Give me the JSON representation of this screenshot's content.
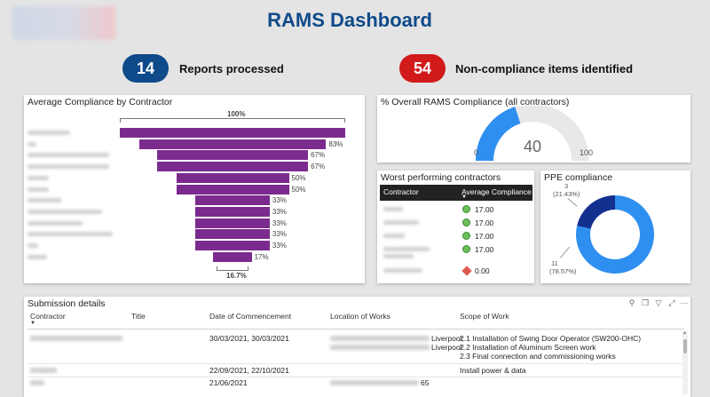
{
  "page": {
    "title": "RAMS Dashboard"
  },
  "kpis": {
    "reports": {
      "value": "14",
      "label": "Reports processed",
      "color": "#0f4a8a"
    },
    "noncompliance": {
      "value": "54",
      "label": "Non-compliance items identified",
      "color": "#d11b1b"
    }
  },
  "funnel": {
    "title": "Average Compliance by Contractor",
    "top_label": "100%",
    "bottom_label": "16.7%",
    "bar_color": "#7b2b8e"
  },
  "gauge": {
    "title": "% Overall RAMS Compliance (all contractors)",
    "value_text": "40",
    "min_label": "0",
    "max_label": "100"
  },
  "worst": {
    "title": "Worst performing contractors",
    "col_contractor": "Contractor",
    "col_avg": "Average Compliance",
    "values": [
      "17.00",
      "17.00",
      "17.00",
      "17.00",
      "0.00"
    ]
  },
  "ppe": {
    "title": "PPE compliance",
    "label_a_count": "3",
    "label_a_pct": "(21.43%)",
    "label_b_count": "11",
    "label_b_pct": "(78.57%)",
    "color_a": "#14308f",
    "color_b": "#2f8ff0"
  },
  "submission": {
    "title": "Submission details",
    "headers": {
      "contractor": "Contractor",
      "title": "Title",
      "date": "Date of Commencement",
      "location": "Location of Works",
      "scope": "Scope of Work"
    },
    "rows": [
      {
        "date": "30/03/2021, 30/03/2021",
        "loc_suffix": "Liverpool,",
        "loc_suffix2": "Liverpool",
        "scope": [
          "2.1 Installation of Swing Door Operator (SW200-OHC)",
          "2.2 Installation of Aluminum Screen work",
          "2.3 Final connection and commissioning works"
        ]
      },
      {
        "date": "22/09/2021, 22/10/2021",
        "scope": [
          "Install power & data"
        ]
      },
      {
        "date": "21/06/2021",
        "loc_suffix": "65"
      }
    ]
  },
  "chart_data": [
    {
      "type": "bar",
      "title": "Average Compliance by Contractor",
      "orientation": "horizontal-funnel",
      "categories": [
        "",
        "",
        "",
        "",
        "",
        "",
        "",
        "",
        "",
        "",
        "",
        ""
      ],
      "values": [
        100,
        83,
        67,
        67,
        50,
        50,
        33,
        33,
        33,
        33,
        33,
        17
      ],
      "data_labels": [
        "",
        "83%",
        "67%",
        "67%",
        "50%",
        "50%",
        "33%",
        "33%",
        "33%",
        "33%",
        "33%",
        "17%"
      ]
    },
    {
      "type": "pie",
      "title": "% Overall RAMS Compliance (all contractors)",
      "subtype": "gauge",
      "values": [
        40
      ],
      "range": [
        0,
        100
      ]
    },
    {
      "type": "pie",
      "title": "PPE compliance",
      "subtype": "donut",
      "values": [
        3,
        11
      ],
      "percents": [
        21.43,
        78.57
      ]
    }
  ]
}
